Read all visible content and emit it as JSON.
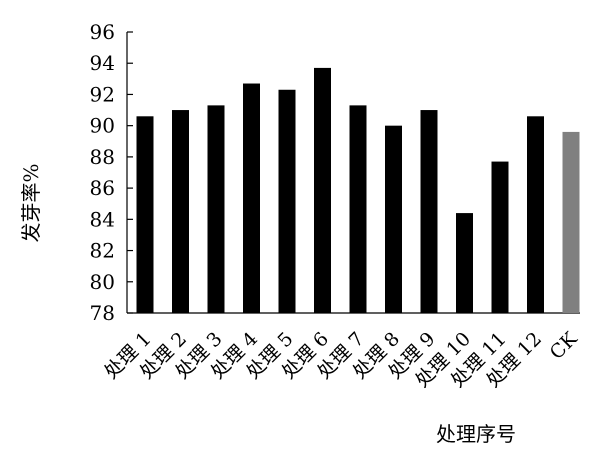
{
  "chart_data": {
    "type": "bar",
    "title": "",
    "xlabel": "处理序号",
    "ylabel": "发芽率%",
    "categories": [
      "处理 1",
      "处理 2",
      "处理 3",
      "处理 4",
      "处理 5",
      "处理 6",
      "处理 7",
      "处理 8",
      "处理 9",
      "处理 10",
      "处理 11",
      "处理 12",
      "CK"
    ],
    "values": [
      90.6,
      91.0,
      91.3,
      92.7,
      92.3,
      93.7,
      91.3,
      90.0,
      91.0,
      84.4,
      87.7,
      90.6,
      89.6
    ],
    "bar_colors": [
      "#000000",
      "#000000",
      "#000000",
      "#000000",
      "#000000",
      "#000000",
      "#000000",
      "#000000",
      "#000000",
      "#000000",
      "#000000",
      "#000000",
      "#808080"
    ],
    "yticks": [
      "78",
      "80",
      "82",
      "84",
      "86",
      "88",
      "90",
      "92",
      "94",
      "96"
    ],
    "ylim": [
      78,
      96
    ],
    "grid": false,
    "legend": "none"
  }
}
